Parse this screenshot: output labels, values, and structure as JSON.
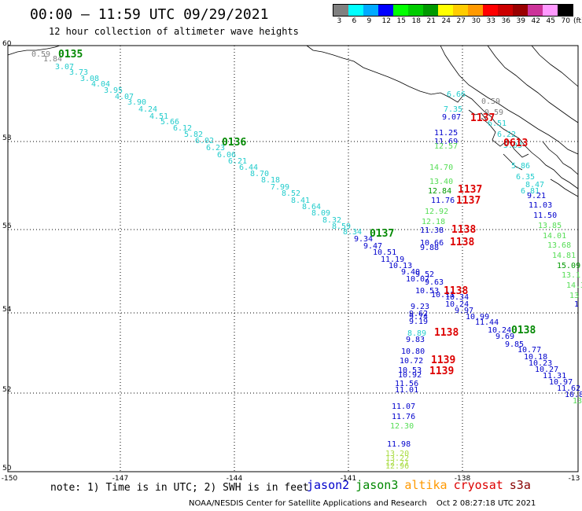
{
  "header": {
    "title": "00:00 — 11:59 UTC 09/29/2021",
    "subtitle": "12 hour collection of altimeter wave heights"
  },
  "legend": {
    "unit": "(ft)",
    "bins": [
      {
        "label": "3",
        "color": "#808080"
      },
      {
        "label": "6",
        "color": "#00ffff"
      },
      {
        "label": "9",
        "color": "#00aaff"
      },
      {
        "label": "12",
        "color": "#0000ff"
      },
      {
        "label": "15",
        "color": "#00ff00"
      },
      {
        "label": "18",
        "color": "#00cc00"
      },
      {
        "label": "21",
        "color": "#009900"
      },
      {
        "label": "24",
        "color": "#ffff00"
      },
      {
        "label": "27",
        "color": "#ffcc00"
      },
      {
        "label": "30",
        "color": "#ff9900"
      },
      {
        "label": "33",
        "color": "#ff0000"
      },
      {
        "label": "36",
        "color": "#cc0000"
      },
      {
        "label": "39",
        "color": "#990000"
      },
      {
        "label": "42",
        "color": "#cc3399"
      },
      {
        "label": "45",
        "color": "#ff99ff"
      },
      {
        "label": "70",
        "color": "#000000"
      }
    ]
  },
  "axes": {
    "lon_labels": [
      "-150",
      "-147",
      "-144",
      "-141",
      "-138",
      "-13"
    ],
    "lat_labels": [
      "60",
      "58",
      "56",
      "54",
      "52",
      "50"
    ]
  },
  "track_labels": [
    {
      "text": "0135",
      "color": "#008800"
    },
    {
      "text": "0136",
      "color": "#008800"
    },
    {
      "text": "0137",
      "color": "#008800"
    },
    {
      "text": "0138",
      "color": "#008800"
    },
    {
      "text": "1137",
      "color": "#dd0000"
    },
    {
      "text": "1137",
      "color": "#dd0000"
    },
    {
      "text": "1137",
      "color": "#dd0000"
    },
    {
      "text": "1138",
      "color": "#dd0000"
    },
    {
      "text": "1138",
      "color": "#dd0000"
    },
    {
      "text": "1138",
      "color": "#dd0000"
    },
    {
      "text": "1138",
      "color": "#dd0000"
    },
    {
      "text": "1139",
      "color": "#dd0000"
    },
    {
      "text": "1139",
      "color": "#dd0000"
    },
    {
      "text": "0613",
      "color": "#dd0000"
    }
  ],
  "wave_heights": {
    "jason3_track": [
      {
        "text": "0.59",
        "color": "#808080"
      },
      {
        "text": "1.84",
        "color": "#808080"
      },
      {
        "text": "3.07",
        "color": "#22cccc"
      },
      {
        "text": "3.73",
        "color": "#22cccc"
      },
      {
        "text": "3.08",
        "color": "#22cccc"
      },
      {
        "text": "4.04",
        "color": "#22cccc"
      },
      {
        "text": "3.95",
        "color": "#22cccc"
      },
      {
        "text": "4.07",
        "color": "#22cccc"
      },
      {
        "text": "3.90",
        "color": "#22cccc"
      },
      {
        "text": "4.24",
        "color": "#22cccc"
      },
      {
        "text": "4.51",
        "color": "#22cccc"
      },
      {
        "text": "5.66",
        "color": "#22cccc"
      },
      {
        "text": "6.12",
        "color": "#22cccc"
      },
      {
        "text": "5.82",
        "color": "#22cccc"
      },
      {
        "text": "6.02",
        "color": "#22cccc"
      },
      {
        "text": "6.23",
        "color": "#22cccc"
      },
      {
        "text": "6.06",
        "color": "#22cccc"
      },
      {
        "text": "6.21",
        "color": "#22cccc"
      },
      {
        "text": "6.44",
        "color": "#22cccc"
      },
      {
        "text": "8.70",
        "color": "#22cccc"
      },
      {
        "text": "8.18",
        "color": "#22cccc"
      },
      {
        "text": "7.99",
        "color": "#22cccc"
      },
      {
        "text": "8.52",
        "color": "#22cccc"
      },
      {
        "text": "8.41",
        "color": "#22cccc"
      },
      {
        "text": "8.64",
        "color": "#22cccc"
      },
      {
        "text": "8.09",
        "color": "#22cccc"
      },
      {
        "text": "8.32",
        "color": "#22cccc"
      },
      {
        "text": "8.59",
        "color": "#22cccc"
      },
      {
        "text": "8.34",
        "color": "#22cccc"
      },
      {
        "text": "9.34",
        "color": "#0000cc"
      },
      {
        "text": "9.47",
        "color": "#0000cc"
      },
      {
        "text": "10.51",
        "color": "#0000cc"
      },
      {
        "text": "11.19",
        "color": "#0000cc"
      },
      {
        "text": "10.13",
        "color": "#0000cc"
      },
      {
        "text": "9.40",
        "color": "#0000cc"
      },
      {
        "text": "9.52",
        "color": "#0000cc"
      },
      {
        "text": "10.07",
        "color": "#0000cc"
      },
      {
        "text": "9.63",
        "color": "#0000cc"
      },
      {
        "text": "10.53",
        "color": "#0000cc"
      },
      {
        "text": "10.11",
        "color": "#0000cc"
      },
      {
        "text": "10.34",
        "color": "#0000cc"
      },
      {
        "text": "10.24",
        "color": "#0000cc"
      },
      {
        "text": "9.97",
        "color": "#0000cc"
      },
      {
        "text": "10.99",
        "color": "#0000cc"
      },
      {
        "text": "11.44",
        "color": "#0000cc"
      },
      {
        "text": "10.24",
        "color": "#0000cc"
      },
      {
        "text": "9.69",
        "color": "#0000cc"
      },
      {
        "text": "9.85",
        "color": "#0000cc"
      },
      {
        "text": "10.77",
        "color": "#0000cc"
      },
      {
        "text": "10.18",
        "color": "#0000cc"
      },
      {
        "text": "10.23",
        "color": "#0000cc"
      },
      {
        "text": "10.27",
        "color": "#0000cc"
      },
      {
        "text": "11.31",
        "color": "#0000cc"
      },
      {
        "text": "10.97",
        "color": "#0000cc"
      },
      {
        "text": "11.62",
        "color": "#0000cc"
      },
      {
        "text": "10.8",
        "color": "#0000cc"
      },
      {
        "text": "13",
        "color": "#55dd55"
      }
    ],
    "coastal_track": [
      {
        "text": "0.59",
        "color": "#808080"
      },
      {
        "text": "0.59",
        "color": "#808080"
      },
      {
        "text": "6.51",
        "color": "#22cccc"
      },
      {
        "text": "6.22",
        "color": "#22cccc"
      },
      {
        "text": "5.03",
        "color": "#22cccc"
      },
      {
        "text": "5.86",
        "color": "#22cccc"
      },
      {
        "text": "6.35",
        "color": "#22cccc"
      },
      {
        "text": "6.81",
        "color": "#22cccc"
      },
      {
        "text": "8.47",
        "color": "#22cccc"
      },
      {
        "text": "9.21",
        "color": "#0000cc"
      },
      {
        "text": "11.03",
        "color": "#0000cc"
      },
      {
        "text": "11.50",
        "color": "#0000cc"
      },
      {
        "text": "13.85",
        "color": "#55dd55"
      },
      {
        "text": "14.01",
        "color": "#55dd55"
      },
      {
        "text": "13.68",
        "color": "#55dd55"
      },
      {
        "text": "14.81",
        "color": "#55dd55"
      },
      {
        "text": "15.09",
        "color": "#009900"
      },
      {
        "text": "13.1",
        "color": "#55dd55"
      },
      {
        "text": "14.3",
        "color": "#55dd55"
      },
      {
        "text": "13",
        "color": "#55dd55"
      },
      {
        "text": "1",
        "color": "#0000cc"
      }
    ],
    "vertical_track": [
      {
        "text": "6.66",
        "color": "#22cccc"
      },
      {
        "text": "7.35",
        "color": "#22cccc"
      },
      {
        "text": "9.07",
        "color": "#0000cc"
      },
      {
        "text": "11.25",
        "color": "#0000cc"
      },
      {
        "text": "11.69",
        "color": "#0000cc"
      },
      {
        "text": "12.57",
        "color": "#55dd55"
      },
      {
        "text": "14.70",
        "color": "#55dd55"
      },
      {
        "text": "13.40",
        "color": "#55dd55"
      },
      {
        "text": "12.84",
        "color": "#009900"
      },
      {
        "text": "11.76",
        "color": "#0000cc"
      },
      {
        "text": "12.92",
        "color": "#55dd55"
      },
      {
        "text": "12.18",
        "color": "#55dd55"
      },
      {
        "text": "11.38",
        "color": "#0000cc"
      },
      {
        "text": "10.66",
        "color": "#0000cc"
      },
      {
        "text": "9.88",
        "color": "#0000cc"
      },
      {
        "text": "9.23",
        "color": "#0000cc"
      },
      {
        "text": "9.62",
        "color": "#0000cc"
      },
      {
        "text": "9.74",
        "color": "#0000cc"
      },
      {
        "text": "9.19",
        "color": "#0000cc"
      },
      {
        "text": "8.89",
        "color": "#22cccc"
      },
      {
        "text": "9.83",
        "color": "#0000cc"
      },
      {
        "text": "10.80",
        "color": "#0000cc"
      },
      {
        "text": "10.72",
        "color": "#0000cc"
      },
      {
        "text": "10.53",
        "color": "#0000cc"
      },
      {
        "text": "10.92",
        "color": "#0000cc"
      },
      {
        "text": "11.56",
        "color": "#0000cc"
      },
      {
        "text": "11.01",
        "color": "#0000cc"
      },
      {
        "text": "11.07",
        "color": "#0000cc"
      },
      {
        "text": "11.76",
        "color": "#0000cc"
      },
      {
        "text": "12.30",
        "color": "#55dd55"
      },
      {
        "text": "11.98",
        "color": "#0000cc"
      },
      {
        "text": "13.20",
        "color": "#aadd44"
      },
      {
        "text": "13.22",
        "color": "#aadd44"
      },
      {
        "text": "12.71",
        "color": "#aadd44"
      },
      {
        "text": "12.96",
        "color": "#aadd44"
      }
    ]
  },
  "footer": {
    "note": "note: 1) Time is in UTC; 2) SWH is in feet",
    "satellites": [
      {
        "name": "jason2",
        "color": "#0000cc"
      },
      {
        "name": "jason3",
        "color": "#008800"
      },
      {
        "name": "altika",
        "color": "#ff9900"
      },
      {
        "name": "cryosat",
        "color": "#dd0000"
      },
      {
        "name": "s3a",
        "color": "#880000"
      }
    ],
    "credit": "NOAA/NESDIS Center for Satellite Applications and Research",
    "generated": "Oct  2 08:27:18 UTC 2021"
  }
}
